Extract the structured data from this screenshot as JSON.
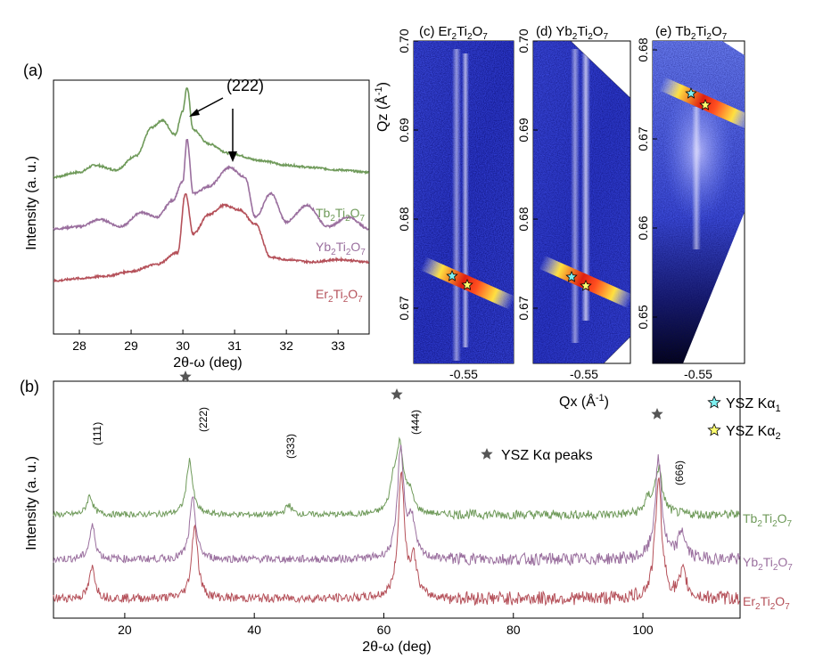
{
  "colors": {
    "tb": "#6f9a5a",
    "yb": "#9a6f9e",
    "er": "#b5515a",
    "axis": "#000000",
    "star_gray": "#555555",
    "star_cyan": "#7ff0f0",
    "star_yellow": "#ffff70"
  },
  "panel_a": {
    "label": "(a)",
    "ylabel": "Intensity (a. u.)",
    "xlabel": "2θ-ω (deg)",
    "xticks": [
      "28",
      "29",
      "30",
      "31",
      "32",
      "33"
    ],
    "annotation": "(222)",
    "series": [
      {
        "name_main": "Tb",
        "sub1": "2",
        "name_mid": "Ti",
        "sub2": "2",
        "name_end": "O",
        "sub3": "7"
      },
      {
        "name_main": "Yb",
        "sub1": "2",
        "name_mid": "Ti",
        "sub2": "2",
        "name_end": "O",
        "sub3": "7"
      },
      {
        "name_main": "Er",
        "sub1": "2",
        "name_mid": "Ti",
        "sub2": "2",
        "name_end": "O",
        "sub3": "7"
      }
    ]
  },
  "panel_b": {
    "label": "(b)",
    "ylabel": "Intensity (a. u.)",
    "xlabel": "2θ-ω (deg)",
    "xticks": [
      "20",
      "40",
      "60",
      "80",
      "100"
    ],
    "peak_labels": [
      "(111)",
      "(222)",
      "(333)",
      "(444)",
      "(666)"
    ],
    "star_legend": "YSZ Kα peaks",
    "series": [
      {
        "name_main": "Tb",
        "sub1": "2",
        "name_mid": "Ti",
        "sub2": "2",
        "name_end": "O",
        "sub3": "7"
      },
      {
        "name_main": "Yb",
        "sub1": "2",
        "name_mid": "Ti",
        "sub2": "2",
        "name_end": "O",
        "sub3": "7"
      },
      {
        "name_main": "Er",
        "sub1": "2",
        "name_mid": "Ti",
        "sub2": "2",
        "name_end": "O",
        "sub3": "7"
      }
    ]
  },
  "rsm": {
    "ylabel_main": "Qz (Å",
    "ylabel_sup": "-1",
    "ylabel_end": ")",
    "xlabel_main": "Qx (Å",
    "xlabel_sup": "-1",
    "xlabel_end": ")",
    "xtick": "-0.55",
    "panels": [
      {
        "label": "(c)",
        "el": "Er",
        "yticks": [
          "0.70",
          "0.69",
          "0.68",
          "0.67"
        ]
      },
      {
        "label": "(d)",
        "el": "Yb",
        "yticks": [
          "0.70",
          "0.69",
          "0.68",
          "0.67"
        ]
      },
      {
        "label": "(e)",
        "el": "Tb",
        "yticks": [
          "0.68",
          "0.67",
          "0.66",
          "0.65"
        ]
      }
    ],
    "legend": [
      {
        "text": "YSZ Kα",
        "sub": "1"
      },
      {
        "text": "YSZ Kα",
        "sub": "2"
      }
    ]
  },
  "chart_data": [
    {
      "type": "line",
      "panel": "(a)",
      "xlabel": "2θ-ω (deg)",
      "ylabel": "Intensity (a. u.)",
      "xlim": [
        27.5,
        33.6
      ],
      "series": [
        {
          "name": "Tb2Ti2O7",
          "x": [
            27.5,
            28.0,
            28.3,
            28.7,
            29.1,
            29.4,
            29.6,
            29.85,
            30.0,
            30.08,
            30.2,
            30.5,
            30.9,
            31.5,
            32.0,
            32.5,
            33.0,
            33.6
          ],
          "y": [
            0.62,
            0.64,
            0.67,
            0.65,
            0.71,
            0.83,
            0.86,
            0.8,
            0.9,
            1.0,
            0.82,
            0.76,
            0.72,
            0.69,
            0.67,
            0.66,
            0.65,
            0.64
          ]
        },
        {
          "name": "Yb2Ti2O7",
          "x": [
            27.5,
            28.0,
            28.4,
            28.8,
            29.2,
            29.5,
            29.8,
            30.0,
            30.08,
            30.2,
            30.5,
            30.9,
            31.2,
            31.4,
            31.7,
            32.0,
            32.4,
            32.8,
            33.2,
            33.6
          ],
          "y": [
            0.4,
            0.41,
            0.44,
            0.41,
            0.47,
            0.45,
            0.52,
            0.6,
            0.78,
            0.55,
            0.58,
            0.66,
            0.62,
            0.45,
            0.55,
            0.43,
            0.5,
            0.41,
            0.45,
            0.4
          ]
        },
        {
          "name": "Er2Ti2O7",
          "x": [
            27.5,
            28.0,
            28.5,
            29.0,
            29.5,
            29.9,
            30.05,
            30.2,
            30.5,
            30.8,
            31.1,
            31.4,
            31.7,
            32.0,
            32.5,
            33.0,
            33.6
          ],
          "y": [
            0.18,
            0.19,
            0.2,
            0.22,
            0.25,
            0.3,
            0.55,
            0.38,
            0.46,
            0.5,
            0.48,
            0.42,
            0.28,
            0.27,
            0.26,
            0.27,
            0.26
          ]
        }
      ]
    },
    {
      "type": "line",
      "panel": "(b)",
      "xlabel": "2θ-ω (deg)",
      "ylabel": "Intensity (a. u.)",
      "xlim": [
        9,
        115
      ],
      "peaks": {
        "(111)": 14.8,
        "(222)": 30.1,
        "(333)": 45.3,
        "(444)": 62.6,
        "(666)": 102.3
      },
      "ysz_star_positions": [
        30.0,
        62.5,
        102.4
      ],
      "series": [
        {
          "name": "Tb2Ti2O7",
          "peaks_x": [
            14.6,
            30.0,
            45.3,
            61.5,
            62.5,
            64.0,
            100.8,
            102.4
          ],
          "peak_heights": [
            0.3,
            0.85,
            0.15,
            0.45,
            1.0,
            0.3,
            0.2,
            0.7
          ]
        },
        {
          "name": "Yb2Ti2O7",
          "peaks_x": [
            15.0,
            30.5,
            62.6,
            64.3,
            102.4,
            106.0
          ],
          "peak_heights": [
            0.3,
            0.55,
            1.0,
            0.35,
            0.9,
            0.25
          ]
        },
        {
          "name": "Er2Ti2O7",
          "peaks_x": [
            15.0,
            30.8,
            62.7,
            64.6,
            102.4,
            106.2
          ],
          "peak_heights": [
            0.25,
            0.6,
            1.0,
            0.3,
            0.95,
            0.2
          ]
        }
      ]
    }
  ]
}
